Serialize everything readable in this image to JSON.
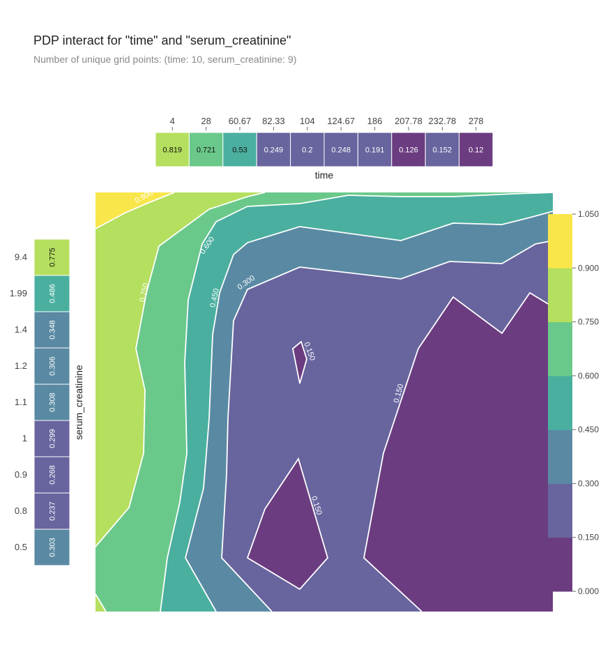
{
  "chart_data": {
    "type": "heatmap",
    "title": "PDP interact for \"time\" and \"serum_creatinine\"",
    "subtitle": "Number of unique grid points: (time: 10, serum_creatinine: 9)",
    "colorscale": [
      "#6b3c80",
      "#68649e",
      "#5a8aa3",
      "#4aaf9f",
      "#6ac98a",
      "#b5df5f",
      "#f8e64b"
    ],
    "time_axis": {
      "label": "time",
      "ticks": [
        "4",
        "28",
        "60.67",
        "82.33",
        "104",
        "124.67",
        "186",
        "207.78",
        "232.78",
        "278"
      ],
      "values": [
        0.819,
        0.721,
        0.53,
        0.249,
        0.2,
        0.248,
        0.191,
        0.126,
        0.152,
        0.12
      ]
    },
    "creatinine_axis": {
      "label": "serum_creatinine",
      "ticks": [
        "9.4",
        "1.99",
        "1.4",
        "1.2",
        "1.1",
        "1",
        "0.9",
        "0.8",
        "0.5"
      ],
      "values": [
        0.775,
        0.486,
        0.348,
        0.306,
        0.308,
        0.299,
        0.268,
        0.237,
        0.303
      ]
    },
    "contour_levels": [
      0.15,
      0.3,
      0.45,
      0.6,
      0.75,
      0.9
    ],
    "contour_labels": [
      "0.900",
      "0.750",
      "0.600",
      "0.450",
      "0.300",
      "0.150",
      "0.150",
      "0.150"
    ],
    "colorbar": {
      "ticks": [
        "0.000",
        "0.150",
        "0.300",
        "0.450",
        "0.600",
        "0.750",
        "0.900",
        "1.050"
      ],
      "range": [
        0,
        1.05
      ]
    }
  }
}
